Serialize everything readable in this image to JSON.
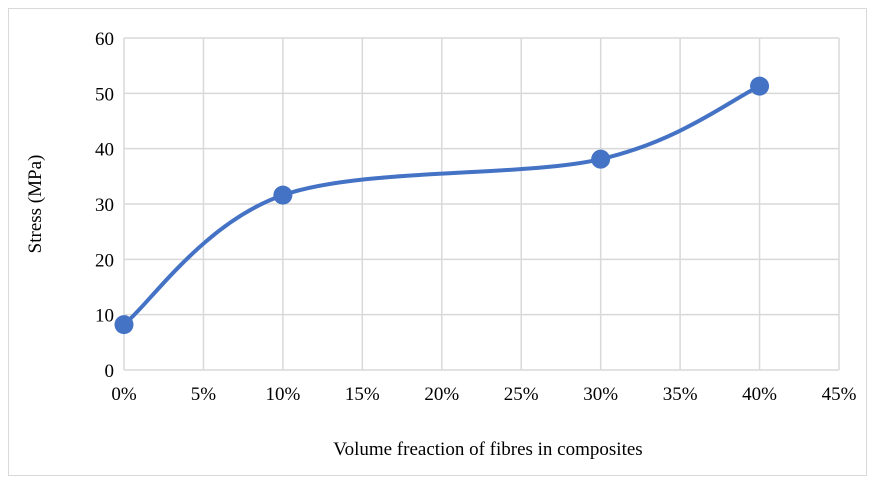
{
  "chart_data": {
    "type": "line",
    "title": "",
    "xlabel": "Volume freaction of fibres in composites",
    "ylabel": "Stress (MPa)",
    "x_tick_labels": [
      "0%",
      "5%",
      "10%",
      "15%",
      "20%",
      "25%",
      "30%",
      "35%",
      "40%",
      "45%"
    ],
    "y_tick_labels": [
      "0",
      "10",
      "20",
      "30",
      "40",
      "50",
      "60"
    ],
    "xlim": [
      0,
      45
    ],
    "ylim": [
      0,
      60
    ],
    "grid": true,
    "smooth": true,
    "series": [
      {
        "x": [
          0,
          10,
          30,
          40
        ],
        "y": [
          8.2,
          31.6,
          38.1,
          51.3
        ],
        "color": "#4472c4"
      }
    ]
  }
}
